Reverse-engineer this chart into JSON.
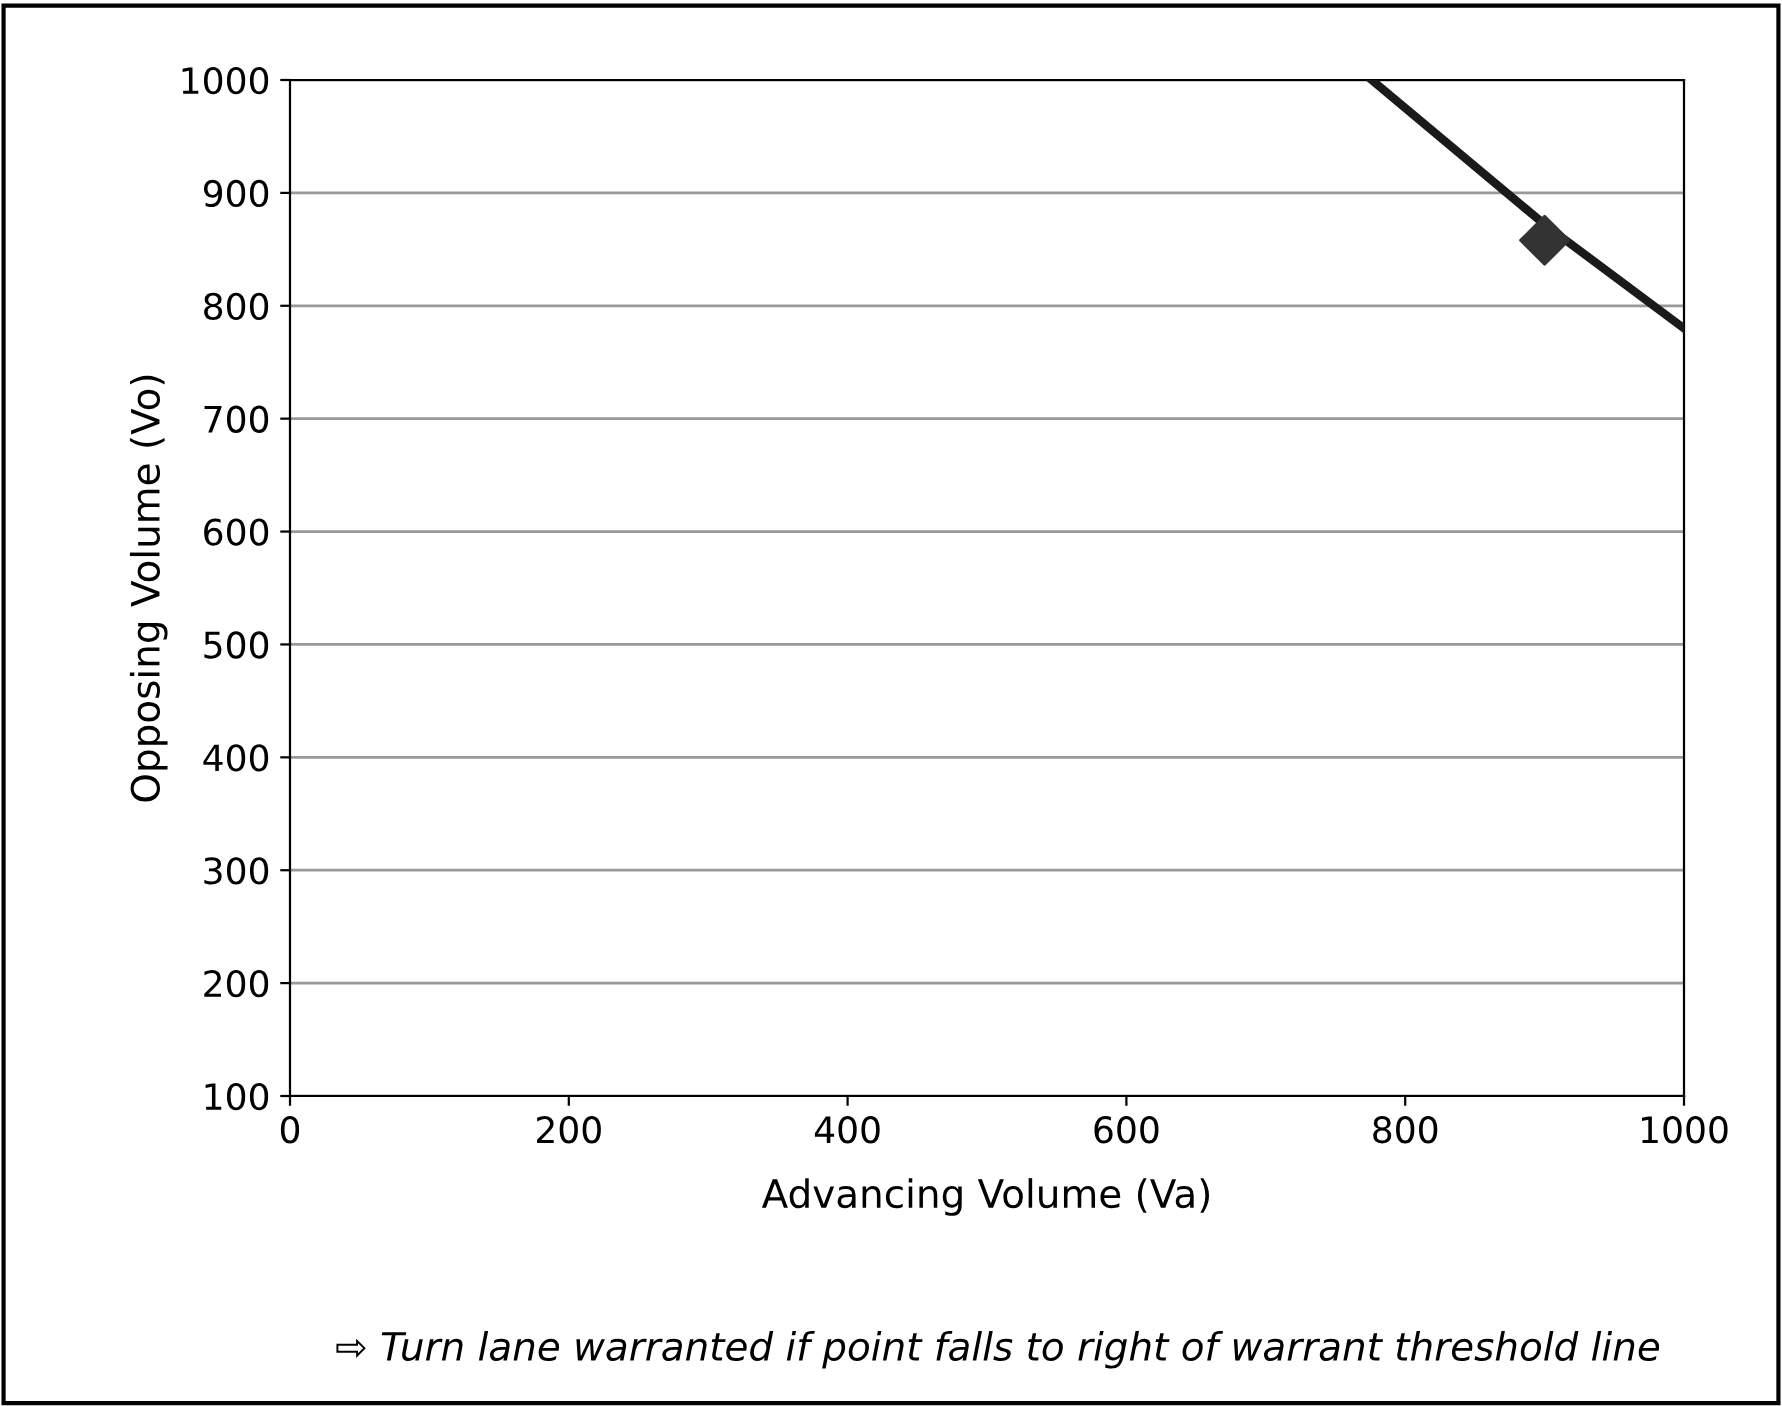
{
  "chart_data": {
    "type": "line",
    "xlabel": "Advancing Volume (Va)",
    "ylabel": "Opposing Volume (Vo)",
    "xlim": [
      0,
      1000
    ],
    "xticks": [
      0,
      200,
      400,
      600,
      800,
      1000
    ],
    "ylim": [
      100,
      1000
    ],
    "yticks": [
      100,
      200,
      300,
      400,
      500,
      600,
      700,
      800,
      900,
      1000
    ],
    "grid": "y",
    "series": [
      {
        "color": "#1a1a1a",
        "x": [
          776,
          900,
          1000
        ],
        "values": [
          1000,
          872,
          780
        ],
        "line_style": "solid",
        "marker": "none"
      },
      {
        "type": "scatter",
        "color": "#333333",
        "x": [
          900
        ],
        "values": [
          858
        ],
        "marker": "diamond"
      }
    ],
    "annotations": [
      "⇨ Turn lane warranted if point falls to right of warrant threshold line"
    ]
  }
}
